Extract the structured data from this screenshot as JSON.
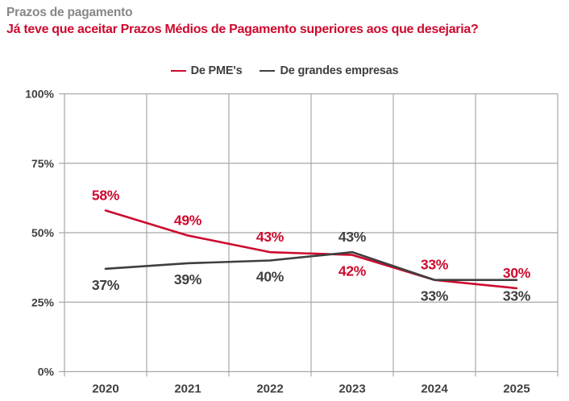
{
  "header": {
    "title": "Prazos de pagamento",
    "subtitle": "Já teve que aceitar Prazos Médios de Pagamento superiores aos que desejaria?"
  },
  "colors": {
    "accent_red": "#cd0a2e",
    "dark": "#3f3f3f",
    "grid": "#a8a8a8",
    "title_gray": "#878787",
    "background": "#ffffff"
  },
  "chart_data": {
    "type": "line",
    "title": "Prazos de pagamento",
    "subtitle": "Já teve que aceitar Prazos Médios de Pagamento superiores aos que desejaria?",
    "categories": [
      "2020",
      "2021",
      "2022",
      "2023",
      "2024",
      "2025"
    ],
    "series": [
      {
        "name": "De PME's",
        "color": "#cd0a2e",
        "values": [
          58,
          49,
          43,
          42,
          33,
          30
        ],
        "label_positions": [
          "above",
          "above",
          "above",
          "below",
          "above",
          "above"
        ]
      },
      {
        "name": "De grandes empresas",
        "color": "#3f3f3f",
        "values": [
          37,
          39,
          40,
          43,
          33,
          33
        ],
        "label_positions": [
          "below",
          "below",
          "below",
          "above",
          "below",
          "below"
        ]
      }
    ],
    "value_suffix": "%",
    "ylim": [
      0,
      100
    ],
    "yticks": [
      {
        "value": 0,
        "label": "0%"
      },
      {
        "value": 25,
        "label": "25%"
      },
      {
        "value": 50,
        "label": "50%"
      },
      {
        "value": 75,
        "label": "75%"
      },
      {
        "value": 100,
        "label": "100%"
      }
    ],
    "grid": true,
    "legend_position": "top",
    "xlabel": "",
    "ylabel": ""
  }
}
